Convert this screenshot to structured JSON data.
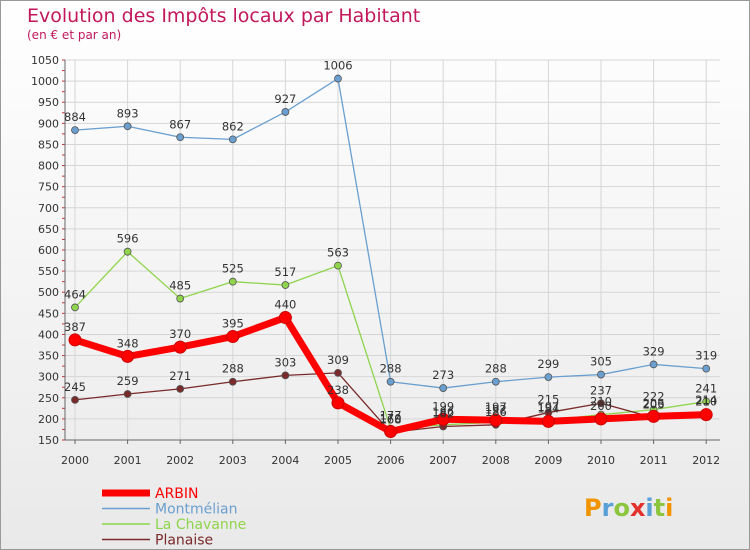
{
  "chart_data": {
    "type": "line",
    "title": "Evolution des Impôts locaux par Habitant",
    "subtitle": "(en € et par an)",
    "x": [
      "2000",
      "2001",
      "2002",
      "2003",
      "2004",
      "2005",
      "2006",
      "2007",
      "2008",
      "2009",
      "2010",
      "2011",
      "2012"
    ],
    "ylim": [
      150,
      1050
    ],
    "yticks": [
      150,
      200,
      250,
      300,
      350,
      400,
      450,
      500,
      550,
      600,
      650,
      700,
      750,
      800,
      850,
      900,
      950,
      1000,
      1050
    ],
    "grid": true,
    "legend_position": "bottom-left",
    "series": [
      {
        "name": "ARBIN",
        "color": "#ff0000",
        "values": [
          387,
          348,
          370,
          395,
          440,
          238,
          170,
          199,
          197,
          194,
          200,
          206,
          210
        ],
        "labels": [
          "387",
          "348",
          "370",
          "395",
          "440",
          "238",
          "170",
          "199",
          "197",
          "194",
          "200",
          "206",
          "210"
        ]
      },
      {
        "name": "Montmélian",
        "color": "#6a9fcf",
        "values": [
          884,
          893,
          867,
          862,
          927,
          1006,
          288,
          273,
          288,
          299,
          305,
          329,
          319
        ],
        "labels": [
          "884",
          "893",
          "867",
          "862",
          "927",
          "1006",
          "288",
          "273",
          "288",
          "299",
          "305",
          "329",
          "319"
        ]
      },
      {
        "name": "La Chavanne",
        "color": "#8fd44c",
        "values": [
          464,
          596,
          485,
          525,
          517,
          563,
          177,
          186,
          192,
          197,
          210,
          222,
          241
        ],
        "labels": [
          "464",
          "596",
          "485",
          "525",
          "517",
          "563",
          "177",
          "186",
          "192",
          "197",
          "210",
          "222",
          "241"
        ]
      },
      {
        "name": "Planaise",
        "color": "#7a2a2a",
        "values": [
          245,
          259,
          271,
          288,
          303,
          309,
          168,
          182,
          186,
          215,
          237,
          203,
          214
        ],
        "labels": [
          "245",
          "259",
          "271",
          "288",
          "303",
          "309",
          "168",
          "182",
          "186",
          "215",
          "237",
          "203",
          "214"
        ]
      }
    ]
  },
  "logo": {
    "letters": [
      "P",
      "r",
      "o",
      "x",
      "i",
      "t",
      "i"
    ],
    "colors": [
      "#f29400",
      "#5aa0d8",
      "#8cc63f",
      "#e3312d",
      "#5aa0d8",
      "#8cc63f",
      "#f29400"
    ]
  }
}
